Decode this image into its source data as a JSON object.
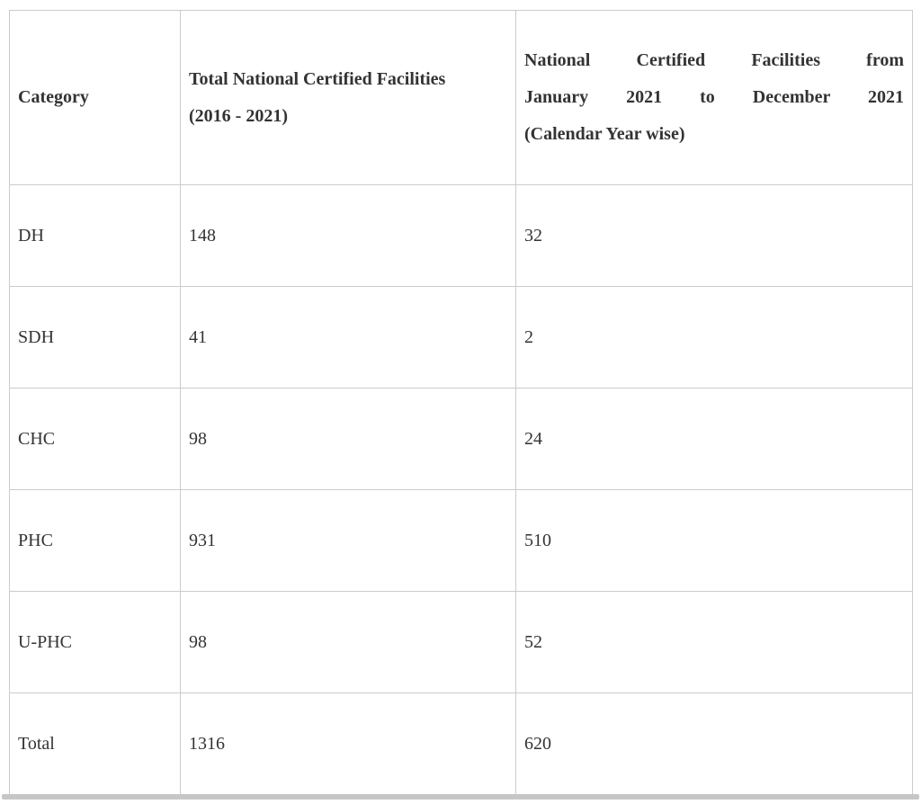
{
  "table": {
    "columns": [
      {
        "lines": [
          "Category"
        ]
      },
      {
        "lines": [
          "Total National Certified Facilities",
          "(2016 - 2021)"
        ]
      },
      {
        "lines": [
          "National Certified Facilities from",
          "January 2021 to December 2021",
          "(Calendar Year wise)"
        ]
      }
    ],
    "rows": [
      [
        "DH",
        "148",
        "32"
      ],
      [
        "SDH",
        "41",
        "2"
      ],
      [
        "CHC",
        "98",
        "24"
      ],
      [
        "PHC",
        "931",
        "510"
      ],
      [
        "U-PHC",
        "98",
        "52"
      ],
      [
        "Total",
        "1316",
        "620"
      ]
    ]
  },
  "colors": {
    "text": "#333333",
    "grid_border": "#cbcbcb",
    "bottom_bar": "#c6c6c6",
    "background": "#ffffff"
  }
}
